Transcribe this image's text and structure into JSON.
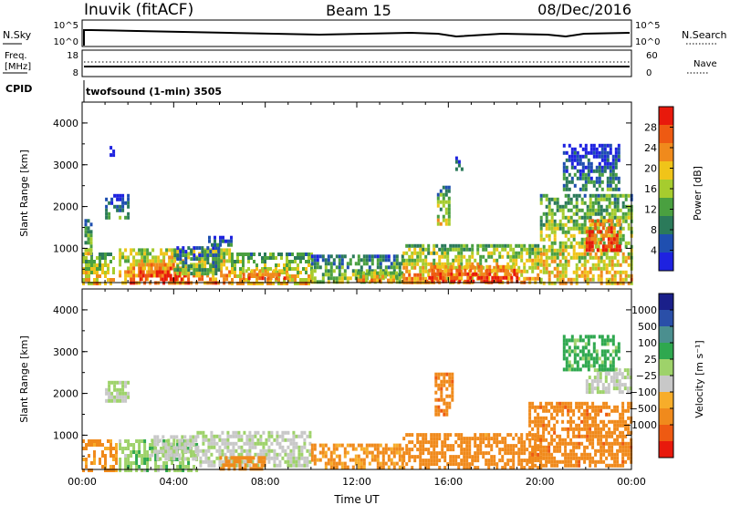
{
  "header": {
    "station": "Inuvik (fitACF)",
    "beam": "Beam 15",
    "date": "08/Dec/2016"
  },
  "noise_panel": {
    "left_label": "N.Sky",
    "right_label": "N.Search",
    "left_ticks": [
      "10^5",
      "10^0"
    ],
    "right_ticks": [
      "10^5",
      "10^0"
    ]
  },
  "freq_panel": {
    "left_label_top": "Freq.",
    "left_label_bottom": "[MHz]",
    "left_ticks": [
      "18",
      "8"
    ],
    "right_label": "Nave",
    "right_ticks": [
      "60",
      "0"
    ]
  },
  "cpid": {
    "label": "CPID",
    "text": "twofsound (1-min) 3505"
  },
  "colors": {
    "power": [
      "#1e22e0",
      "#1f4fb0",
      "#2b7a5a",
      "#4aa040",
      "#a6cc2e",
      "#f0c419",
      "#f08a1c",
      "#ee5a12",
      "#e8190c"
    ],
    "velocity": [
      "#e8190c",
      "#ee5a12",
      "#f08a1c",
      "#f7ad2a",
      "#c8c8c8",
      "#9ed26a",
      "#2fa84f",
      "#4b8f8f",
      "#2a4fa8",
      "#1a1f8a"
    ]
  },
  "chart_data": [
    {
      "type": "heatmap",
      "name": "power",
      "ylabel": "Slant Range [km]",
      "yticks": [
        "1000",
        "2000",
        "3000",
        "4000"
      ],
      "ylim": [
        180,
        4500
      ],
      "xlim": [
        0,
        24
      ],
      "colorbar_label": "Power [dB]",
      "colorbar_ticks": [
        "4",
        "8",
        "12",
        "16",
        "20",
        "24",
        "28"
      ],
      "colorbar_range": [
        0,
        32
      ],
      "blobs": [
        {
          "x": [
            0.0,
            1.4
          ],
          "y": [
            200,
            900
          ],
          "v": 16
        },
        {
          "x": [
            0.1,
            0.4
          ],
          "y": [
            900,
            1700
          ],
          "v": 12
        },
        {
          "x": [
            1.0,
            2.0
          ],
          "y": [
            1750,
            2300
          ],
          "v": 6
        },
        {
          "x": [
            1.2,
            1.4
          ],
          "y": [
            3200,
            3450
          ],
          "v": 5
        },
        {
          "x": [
            1.6,
            6.5
          ],
          "y": [
            200,
            1000
          ],
          "v": 20
        },
        {
          "x": [
            2.5,
            4.5
          ],
          "y": [
            300,
            650
          ],
          "v": 27
        },
        {
          "x": [
            4.0,
            6.0
          ],
          "y": [
            400,
            1050
          ],
          "v": 10
        },
        {
          "x": [
            6.5,
            10.0
          ],
          "y": [
            200,
            900
          ],
          "v": 16
        },
        {
          "x": [
            7.0,
            9.0
          ],
          "y": [
            250,
            500
          ],
          "v": 25
        },
        {
          "x": [
            5.5,
            6.5
          ],
          "y": [
            1100,
            1300
          ],
          "v": 6
        },
        {
          "x": [
            10.0,
            14.0
          ],
          "y": [
            200,
            850
          ],
          "v": 12
        },
        {
          "x": [
            12.0,
            14.0
          ],
          "y": [
            200,
            450
          ],
          "v": 20
        },
        {
          "x": [
            14.0,
            20.0
          ],
          "y": [
            200,
            1100
          ],
          "v": 18
        },
        {
          "x": [
            15.0,
            19.0
          ],
          "y": [
            250,
            600
          ],
          "v": 27
        },
        {
          "x": [
            15.5,
            16.0
          ],
          "y": [
            1600,
            2500
          ],
          "v": 14
        },
        {
          "x": [
            16.3,
            16.6
          ],
          "y": [
            2900,
            3200
          ],
          "v": 8
        },
        {
          "x": [
            20.0,
            24.0
          ],
          "y": [
            200,
            2300
          ],
          "v": 16
        },
        {
          "x": [
            22.0,
            23.5
          ],
          "y": [
            1000,
            1700
          ],
          "v": 27
        },
        {
          "x": [
            21.0,
            23.5
          ],
          "y": [
            2400,
            3500
          ],
          "v": 6
        }
      ]
    },
    {
      "type": "heatmap",
      "name": "velocity",
      "ylabel": "Slant Range [km]",
      "yticks": [
        "1000",
        "2000",
        "3000",
        "4000"
      ],
      "ylim": [
        180,
        4500
      ],
      "xlim": [
        0,
        24
      ],
      "xticks": [
        "00:00",
        "04:00",
        "08:00",
        "12:00",
        "16:00",
        "20:00",
        "00:00"
      ],
      "xlabel": "Time UT",
      "colorbar_label": "Velocity [m s⁻¹]",
      "colorbar_ticks": [
        "1000",
        "500",
        "100",
        "25",
        "−25",
        "−100",
        "−500",
        "−1000"
      ],
      "blobs": [
        {
          "x": [
            0.0,
            1.5
          ],
          "y": [
            200,
            900
          ],
          "v": -150
        },
        {
          "x": [
            1.0,
            2.0
          ],
          "y": [
            1800,
            2300
          ],
          "v": 20
        },
        {
          "x": [
            1.6,
            5.0
          ],
          "y": [
            200,
            900
          ],
          "v": 80
        },
        {
          "x": [
            3.0,
            5.0
          ],
          "y": [
            400,
            1000
          ],
          "v": 10
        },
        {
          "x": [
            5.0,
            10.0
          ],
          "y": [
            300,
            1100
          ],
          "v": 15
        },
        {
          "x": [
            6.0,
            8.0
          ],
          "y": [
            200,
            500
          ],
          "v": -300
        },
        {
          "x": [
            10.0,
            14.0
          ],
          "y": [
            200,
            800
          ],
          "v": -120
        },
        {
          "x": [
            14.0,
            20.0
          ],
          "y": [
            200,
            1050
          ],
          "v": -250
        },
        {
          "x": [
            15.4,
            16.2
          ],
          "y": [
            1500,
            2500
          ],
          "v": -400
        },
        {
          "x": [
            19.5,
            24.0
          ],
          "y": [
            300,
            1800
          ],
          "v": -350
        },
        {
          "x": [
            22.0,
            24.0
          ],
          "y": [
            2000,
            2600
          ],
          "v": 10
        },
        {
          "x": [
            21.0,
            23.5
          ],
          "y": [
            2600,
            3400
          ],
          "v": 150
        }
      ]
    }
  ]
}
